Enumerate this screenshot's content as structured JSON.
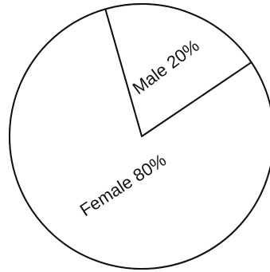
{
  "chart_data": {
    "type": "pie",
    "slices": [
      {
        "label": "Male 20%",
        "category": "Male",
        "value": 20
      },
      {
        "label": "Female 80%",
        "category": "Female",
        "value": 80
      }
    ]
  }
}
